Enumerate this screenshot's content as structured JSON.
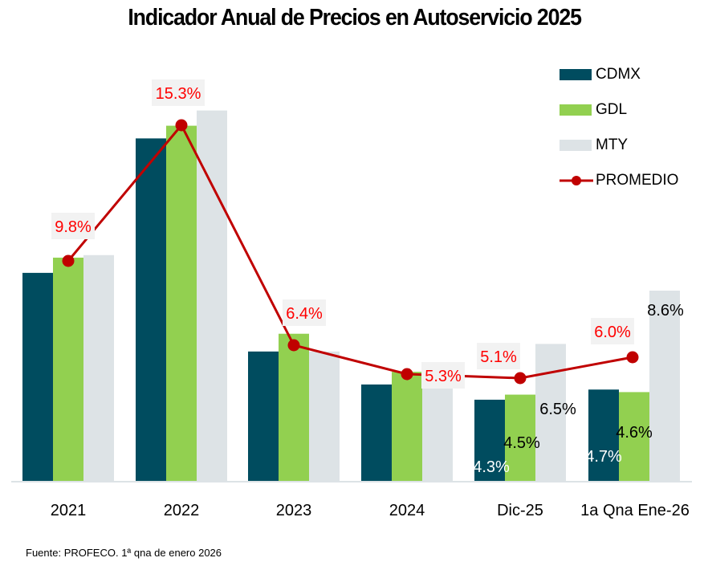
{
  "chart_data": {
    "type": "bar",
    "title": "Indicador Anual de Precios en Autoservicio 2025",
    "categories": [
      "2021",
      "2022",
      "2023",
      "2024",
      "Dic-25",
      "1a Qna Ene-26"
    ],
    "series": [
      {
        "name": "CDMX",
        "type": "bar",
        "color": "#004c5f",
        "values": [
          9.3,
          14.6,
          6.2,
          4.9,
          4.3,
          4.7
        ],
        "labels": [
          null,
          null,
          null,
          null,
          "4.3%",
          "4.7%"
        ]
      },
      {
        "name": "GDL",
        "type": "bar",
        "color": "#92d050",
        "values": [
          9.9,
          15.1,
          6.9,
          5.4,
          4.5,
          4.6
        ],
        "labels": [
          null,
          null,
          null,
          null,
          "4.5%",
          "4.6%"
        ]
      },
      {
        "name": "MTY",
        "type": "bar",
        "color": "#dde3e6",
        "values": [
          10.0,
          15.7,
          6.2,
          5.4,
          6.5,
          8.6
        ],
        "labels": [
          null,
          null,
          null,
          null,
          "6.5%",
          "8.6%"
        ]
      },
      {
        "name": "PROMEDIO",
        "type": "line",
        "color": "#c00000",
        "values": [
          9.8,
          15.3,
          6.4,
          5.3,
          5.1,
          6.0
        ],
        "labels": [
          "9.8%",
          "15.3%",
          "6.4%",
          "5.3%",
          "5.1%",
          "6.0%"
        ]
      }
    ],
    "xlabel": "",
    "ylabel": "",
    "ylim": [
      1.1,
      16.5
    ],
    "grid": false,
    "legend": "top-right"
  },
  "source": "Fuente: PROFECO. 1ª qna de enero 2026"
}
